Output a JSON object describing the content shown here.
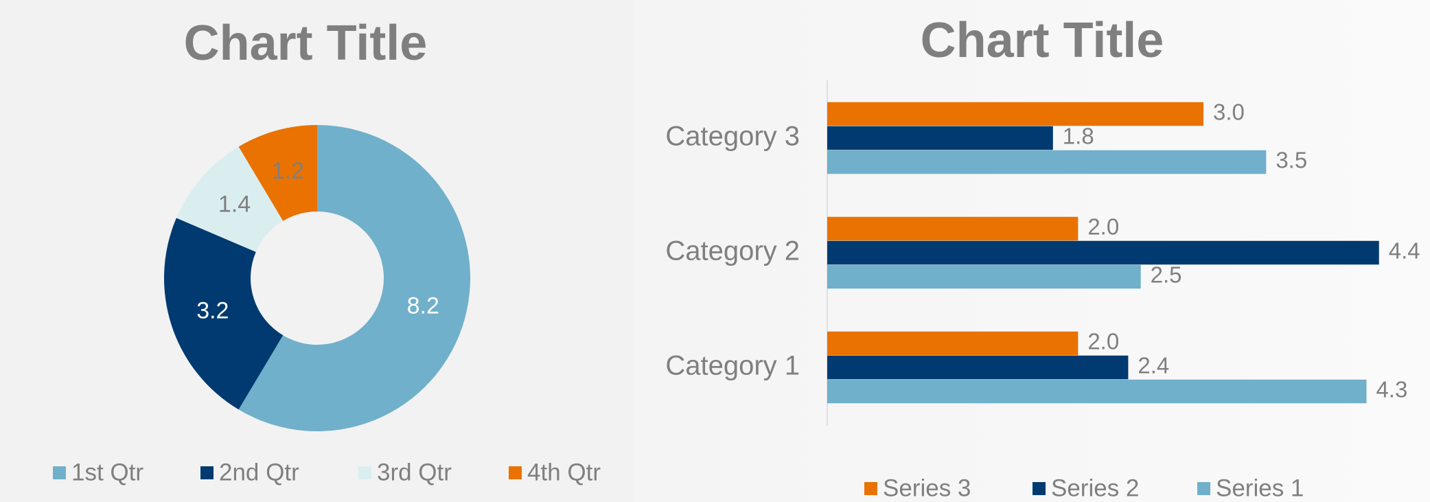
{
  "chart_data": [
    {
      "type": "donut",
      "title": "Chart Title",
      "categories": [
        "1st Qtr",
        "2nd Qtr",
        "3rd Qtr",
        "4th Qtr"
      ],
      "values": [
        8.2,
        3.2,
        1.4,
        1.2
      ],
      "colors": [
        "#70b0cb",
        "#003a70",
        "#daeef0",
        "#e97200"
      ],
      "label_colors": [
        "#ffffff",
        "#ffffff",
        "#7f7f7f",
        "#7f7f7f"
      ],
      "legend": "bottom"
    },
    {
      "type": "hbar",
      "title": "Chart Title",
      "categories": [
        "Category 1",
        "Category 2",
        "Category 3"
      ],
      "series": [
        {
          "name": "Series 1",
          "color": "#70b0cb",
          "values": [
            4.3,
            2.5,
            3.5
          ],
          "value_labels": [
            "4.3",
            "2.5",
            "3.5"
          ]
        },
        {
          "name": "Series 2",
          "color": "#003a70",
          "values": [
            2.4,
            4.4,
            1.8
          ],
          "value_labels": [
            "2.4",
            "4.4",
            "1.8"
          ]
        },
        {
          "name": "Series 3",
          "color": "#e97200",
          "values": [
            2,
            2,
            3
          ],
          "value_labels": [
            "2.0",
            "2.0",
            "3.0"
          ]
        }
      ],
      "xlim": [
        0,
        4.5
      ],
      "legend": "bottom"
    }
  ]
}
